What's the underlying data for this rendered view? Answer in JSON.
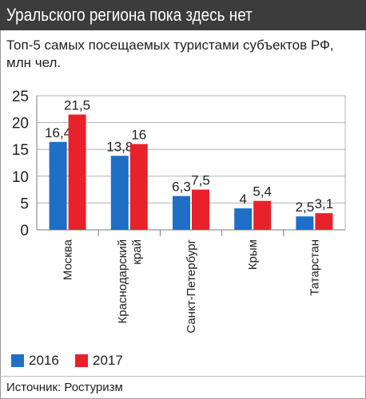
{
  "header": {
    "title": "Уральского региона пока здесь нет"
  },
  "subtitle": "Топ-5 самых посещаемых туристами субъектов РФ, млн чел.",
  "source": "Источник: Ростуризм",
  "colors": {
    "series_2016": "#1f6fc4",
    "series_2017": "#e8212b",
    "header_bg": "#3c3c3c"
  },
  "chart_data": {
    "type": "bar",
    "title": "Топ-5 самых посещаемых туристами субъектов РФ, млн чел.",
    "categories": [
      "Москва",
      "Краснодарский край",
      "Санкт-Петербург",
      "Крым",
      "Татарстан"
    ],
    "category_lines": [
      [
        "Москва"
      ],
      [
        "Краснодарский",
        "край"
      ],
      [
        "Санкт-Петербург"
      ],
      [
        "Крым"
      ],
      [
        "Татарстан"
      ]
    ],
    "series": [
      {
        "name": "2016",
        "values": [
          16.4,
          13.8,
          6.3,
          4,
          2.5
        ],
        "labels": [
          "16,4",
          "13,8",
          "6,3",
          "4",
          "2,5"
        ]
      },
      {
        "name": "2017",
        "values": [
          21.5,
          16,
          7.5,
          5.4,
          3.1
        ],
        "labels": [
          "21,5",
          "16",
          "7,5",
          "5,4",
          "3,1"
        ]
      }
    ],
    "ylim": [
      0,
      25
    ],
    "yticks": [
      "0",
      "5",
      "10",
      "15",
      "20",
      "25"
    ],
    "grid": true,
    "legend_placement": "bottom-left"
  }
}
